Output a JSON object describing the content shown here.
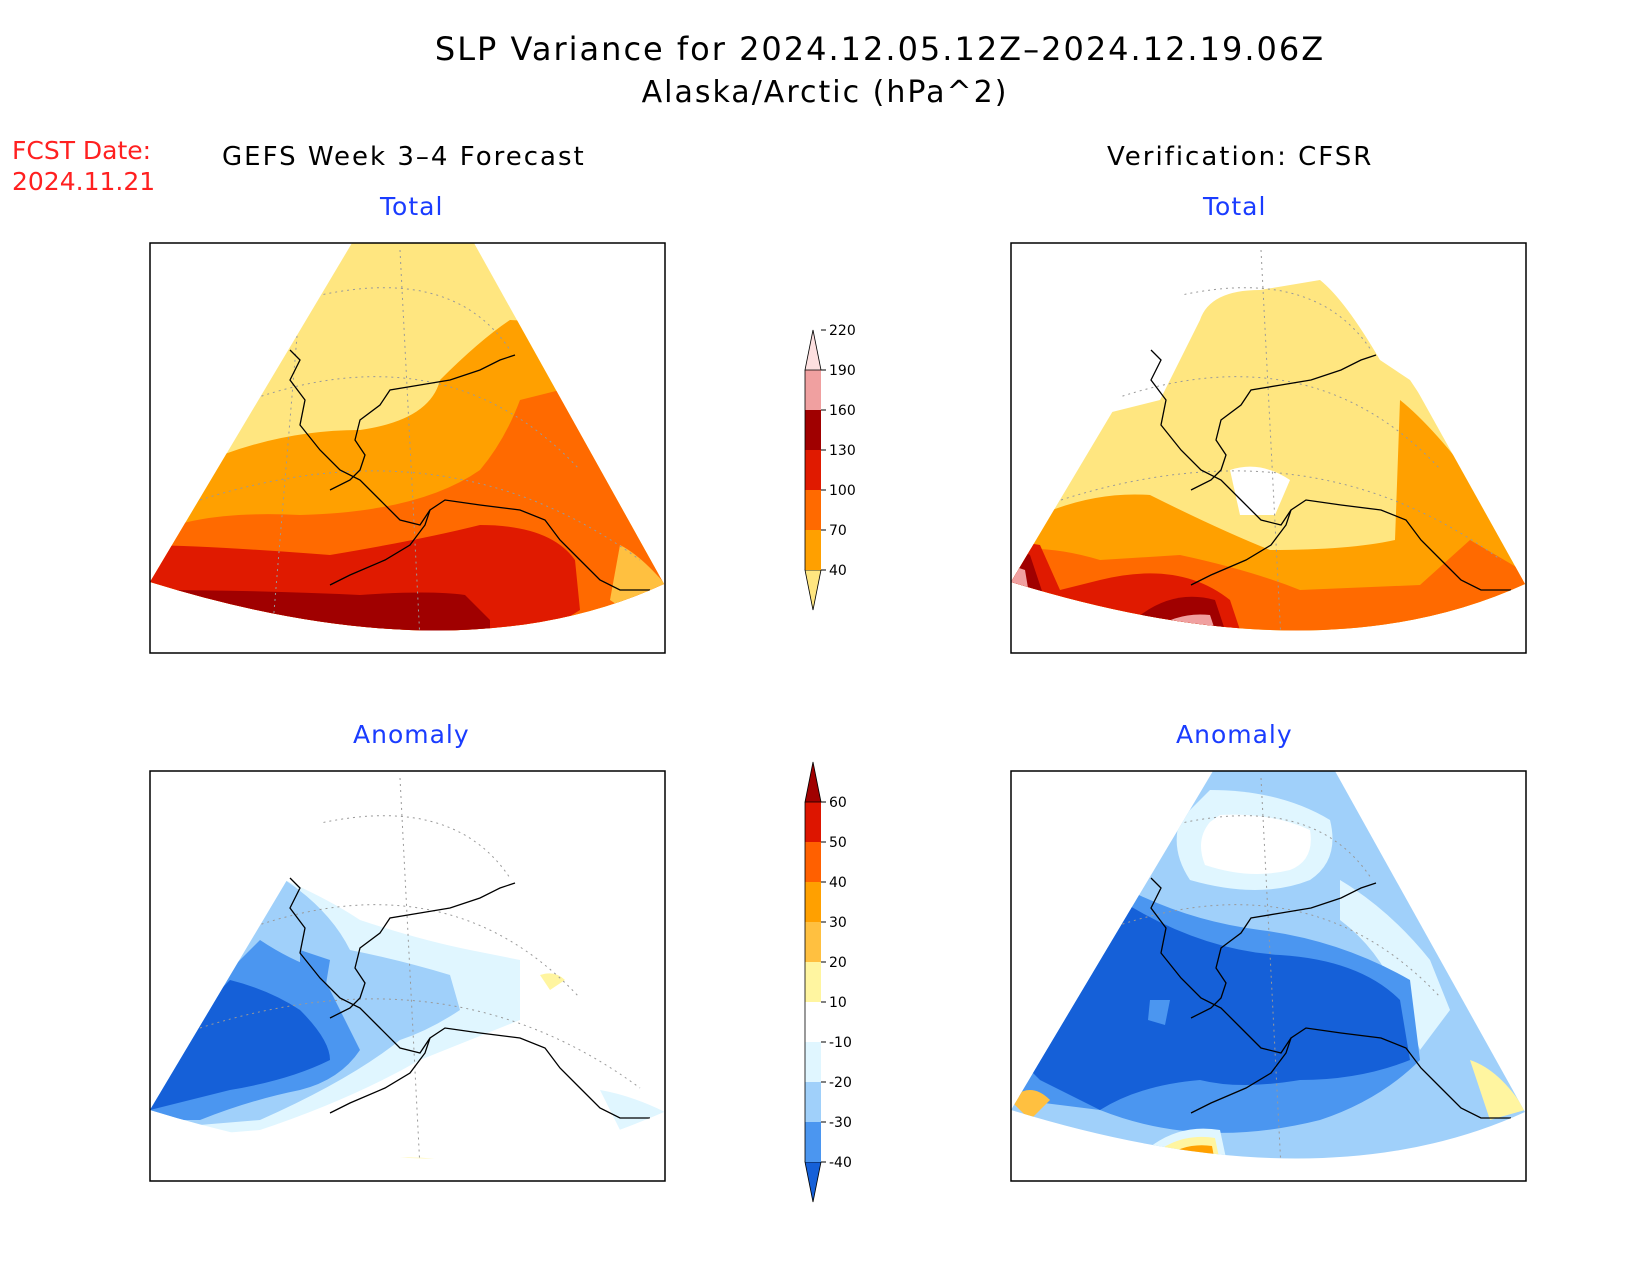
{
  "title": "SLP Variance for 2024.12.05.12Z–2024.12.19.06Z",
  "subtitle": "Alaska/Arctic (hPa^2)",
  "fcst_date": {
    "label": "FCST Date:",
    "value": "2024.11.21"
  },
  "columns": {
    "left": "GEFS Week 3–4 Forecast",
    "right": "Verification: CFSR"
  },
  "panels": {
    "top_left": "Total",
    "top_right": "Total",
    "bottom_left": "Anomaly",
    "bottom_right": "Anomaly"
  },
  "legend_total": {
    "levels": [
      "40",
      "70",
      "100",
      "130",
      "160",
      "190",
      "220"
    ],
    "colors": [
      "#ffe680",
      "#ffa000",
      "#ff6a00",
      "#e01a00",
      "#a00000",
      "#f0a0a0",
      "#fde0e0"
    ]
  },
  "legend_anomaly": {
    "levels": [
      "-40",
      "-30",
      "-20",
      "-10",
      "10",
      "20",
      "30",
      "40",
      "50",
      "60"
    ],
    "colors": [
      "#1560d8",
      "#4b96f0",
      "#a0d0fa",
      "#e0f6ff",
      "#ffffff",
      "#fff5a0",
      "#ffc040",
      "#ffa000",
      "#ff6000",
      "#dd1500",
      "#a00000"
    ]
  },
  "palette": {
    "c40": "#ffe680",
    "c70": "#ffa000",
    "c100": "#ff6a00",
    "c130": "#e01a00",
    "c160": "#a00000",
    "c190": "#f0a0a0",
    "c220": "#fde0e0",
    "a_m40": "#1560d8",
    "a_m30": "#4b96f0",
    "a_m20": "#a0d0fa",
    "a_m10": "#e0f6ff",
    "a_10": "#fff5a0",
    "a_20": "#ffc040",
    "a_30": "#ffa000",
    "a_40": "#ff6000",
    "a_50": "#dd1500"
  }
}
